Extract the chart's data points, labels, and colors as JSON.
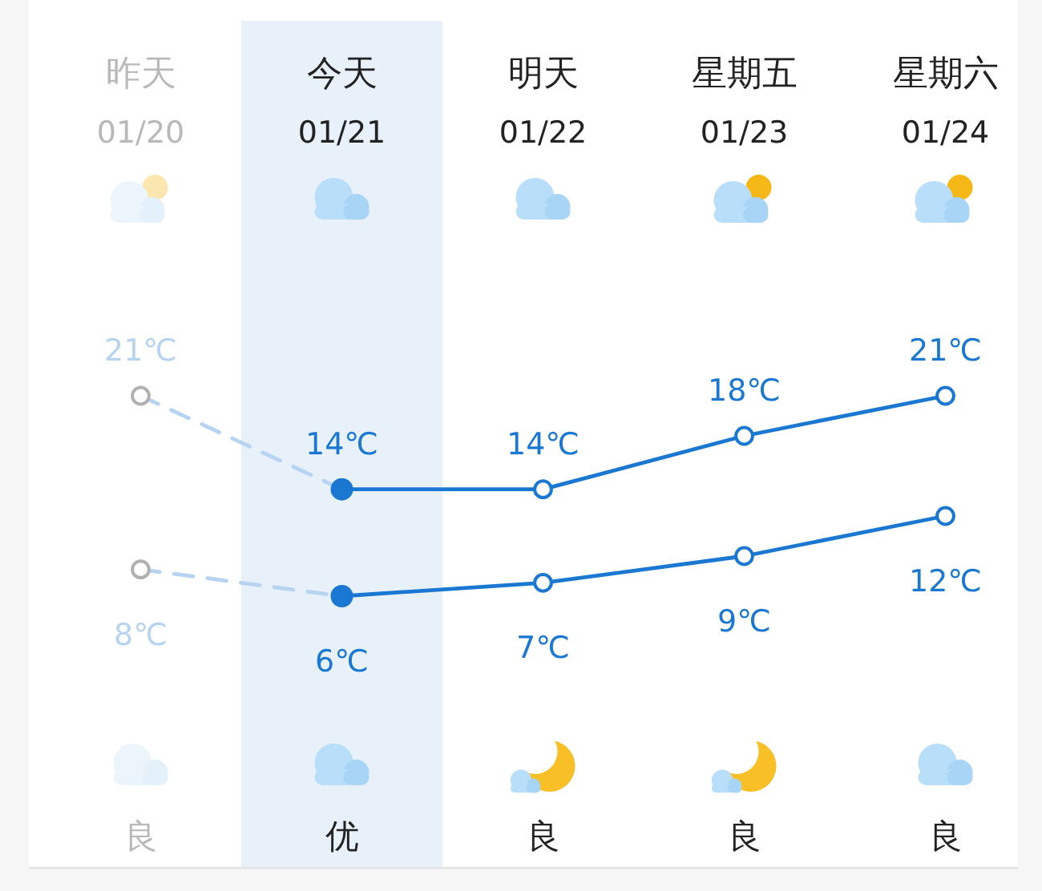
{
  "chart_data": {
    "type": "line",
    "categories": [
      "昨天\n01/20",
      "今天\n01/21",
      "明天\n01/22",
      "星期五\n01/23",
      "星期六\n01/24"
    ],
    "series": [
      {
        "color": "#b6d4f1",
        "line_style": "dashed",
        "values": [
          21,
          14,
          null,
          null,
          null
        ],
        "value_labels": [
          "21℃",
          null,
          null,
          null,
          null
        ],
        "colors": [
          "#b0b0b0",
          null,
          null,
          null,
          null
        ]
      },
      {
        "color": "#1a78d2",
        "values": [
          null,
          14,
          14,
          18,
          21
        ],
        "value_labels": [
          null,
          "14℃",
          "14℃",
          "18℃",
          "21℃"
        ]
      },
      {
        "color": "#b6d4f1",
        "line_style": "dashed",
        "values": [
          8,
          6,
          null,
          null,
          null
        ],
        "value_labels": [
          "8℃",
          null,
          null,
          null,
          null
        ],
        "colors": [
          "#b0b0b0",
          null,
          null,
          null,
          null
        ]
      },
      {
        "color": "#1a78d2",
        "values": [
          null,
          6,
          7,
          9,
          12
        ],
        "value_labels": [
          null,
          "6℃",
          "7℃",
          "9℃",
          "12℃"
        ]
      }
    ],
    "tick_labels": "x",
    "marker": "circle",
    "line_style": "solid",
    "bands": [
      {
        "axis": "x",
        "from": "今天\n01/21",
        "to": "今天\n01/21",
        "color": "#e8f1fa"
      }
    ],
    "annotations": [
      "良",
      "优",
      "良",
      "良",
      "良"
    ]
  }
}
